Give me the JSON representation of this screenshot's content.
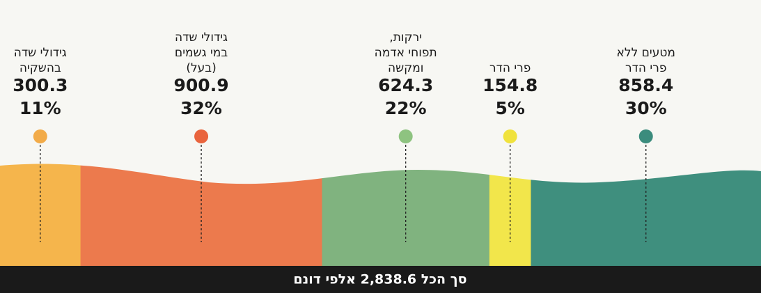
{
  "chart_data": {
    "type": "strip",
    "categories": [
      [
        "גידולי שדה",
        "בהשקיה"
      ],
      [
        "גידולי שדה",
        "במי גשמים",
        "(בעל)"
      ],
      [
        "ירקות,",
        "תפוחי אדמה",
        "ומקשה"
      ],
      [
        "פרי הדר"
      ],
      [
        "מטעים ללא",
        "פרי הדר"
      ]
    ],
    "values": [
      300.3,
      900.9,
      624.3,
      154.8,
      858.4
    ],
    "percents": [
      11,
      32,
      22,
      5,
      30
    ],
    "percent_labels": [
      "11%",
      "32%",
      "22%",
      "5%",
      "30%"
    ],
    "colors": [
      "#f5b54c",
      "#ec7a4d",
      "#80b37f",
      "#f2e64b",
      "#3f8f7e"
    ],
    "dot_colors": [
      "#f2ab48",
      "#e9643d",
      "#8ec380",
      "#f0e23c",
      "#3b8c7d"
    ],
    "footer": "סך הכל 2,838.6 אלפי דונם"
  }
}
